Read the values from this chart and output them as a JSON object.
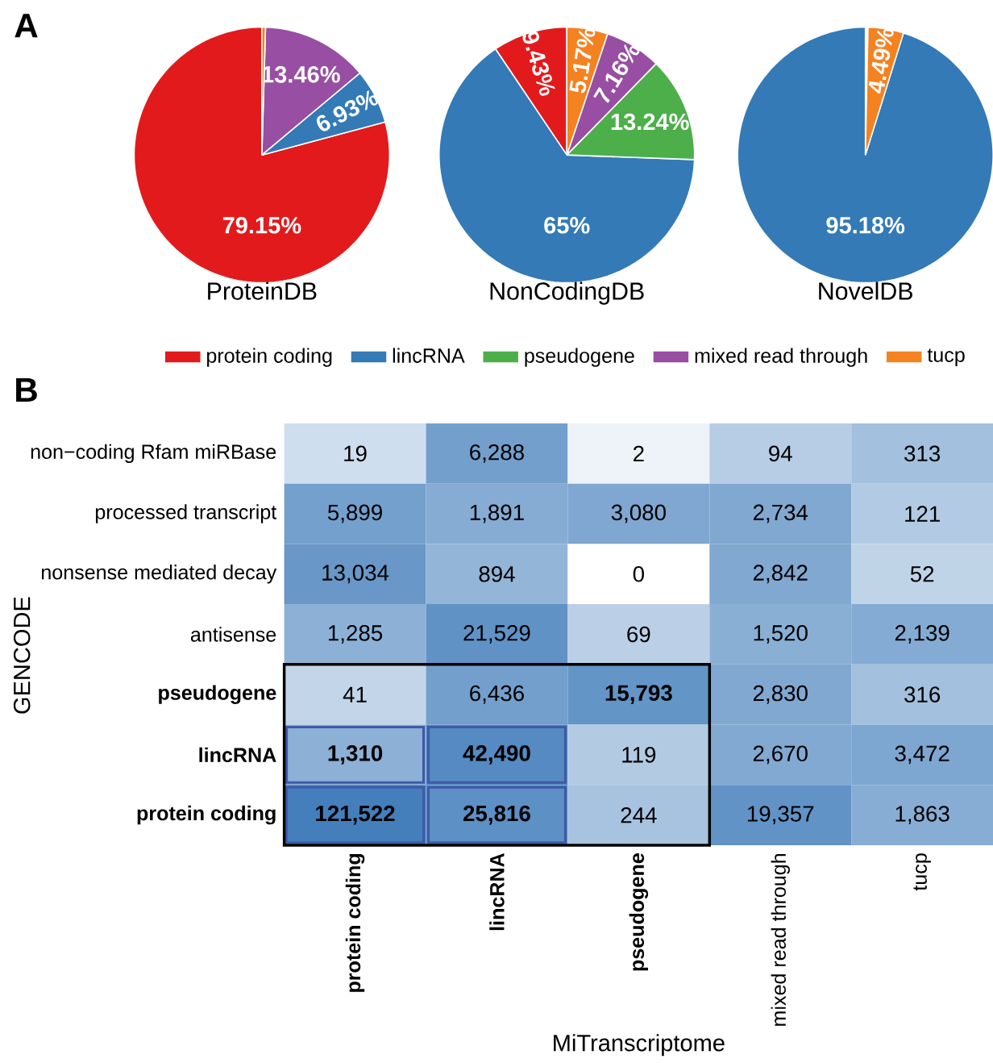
{
  "chart_data": [
    {
      "type": "pie",
      "title": "ProteinDB",
      "annotations": [
        "A"
      ],
      "categories": [
        null,
        null,
        null,
        null,
        null
      ],
      "values": [
        79.15,
        6.93,
        0,
        13.46,
        0.46
      ],
      "colors": [
        "#e31a1c",
        "#337ab7",
        "#4daf4a",
        "#984ea3",
        "#f58220"
      ],
      "value_labels": [
        "79.15%",
        "6.93%",
        null,
        "13.46%",
        null
      ]
    },
    {
      "type": "pie",
      "title": "NonCodingDB",
      "legend": "bottom",
      "categories": [
        "protein coding",
        "lincRNA",
        "pseudogene",
        "mixed read through",
        "tucp"
      ],
      "values": [
        9.43,
        65,
        13.24,
        7.16,
        5.17
      ],
      "colors": [
        "#e31a1c",
        "#337ab7",
        "#4daf4a",
        "#984ea3",
        "#f58220"
      ],
      "value_labels": [
        "9.43%",
        "65%",
        "13.24%",
        "7.16%",
        "5.17%"
      ]
    },
    {
      "type": "pie",
      "title": "NovelDB",
      "categories": [
        null,
        null,
        null,
        null,
        null
      ],
      "values": [
        null,
        95.18,
        0,
        0,
        4.49
      ],
      "colors": [
        "#e31a1c",
        "#337ab7",
        "#4daf4a",
        "#984ea3",
        "#f58220"
      ],
      "value_labels": [
        null,
        "95.18%",
        null,
        null,
        "4.49%"
      ]
    },
    {
      "type": "heatmap",
      "annotations": [
        "B"
      ],
      "xlabel": "MiTranscriptome",
      "ylabel": "GENCODE",
      "categories": [
        "**protein coding**",
        "**lincRNA**",
        "**pseudogene**",
        "mixed read through",
        "tucp"
      ],
      "y_categories": [
        "non−coding Rfam miRBase",
        "processed transcript",
        "nonsense mediated decay",
        "antisense",
        "**pseudogene**",
        "**lincRNA**",
        "**protein coding**"
      ],
      "cells": [
        [
          19,
          6288,
          2,
          94,
          313
        ],
        [
          5899,
          1891,
          3080,
          2734,
          121
        ],
        [
          13034,
          894,
          0,
          2842,
          52
        ],
        [
          1285,
          21529,
          69,
          1520,
          2139
        ],
        [
          41,
          6436,
          15793,
          2830,
          316
        ],
        [
          1310,
          42490,
          119,
          2670,
          3472
        ],
        [
          121522,
          25816,
          244,
          19357,
          1863
        ]
      ],
      "cell_labels": [
        [
          "19",
          "6,288",
          "2",
          "94",
          "313"
        ],
        [
          "5,899",
          "1,891",
          "3,080",
          "2,734",
          "121"
        ],
        [
          "13,034",
          "894",
          "0",
          "2,842",
          "52"
        ],
        [
          "1,285",
          "21,529",
          "69",
          "1,520",
          "2,139"
        ],
        [
          "41",
          "6,436",
          "**15,793**",
          "2,830",
          "316"
        ],
        [
          "**1,310**",
          "**42,490**",
          "119",
          "2,670",
          "3,472"
        ],
        [
          "**121,522**",
          "**25,816**",
          "244",
          "19,357",
          "1,863"
        ]
      ]
    }
  ]
}
